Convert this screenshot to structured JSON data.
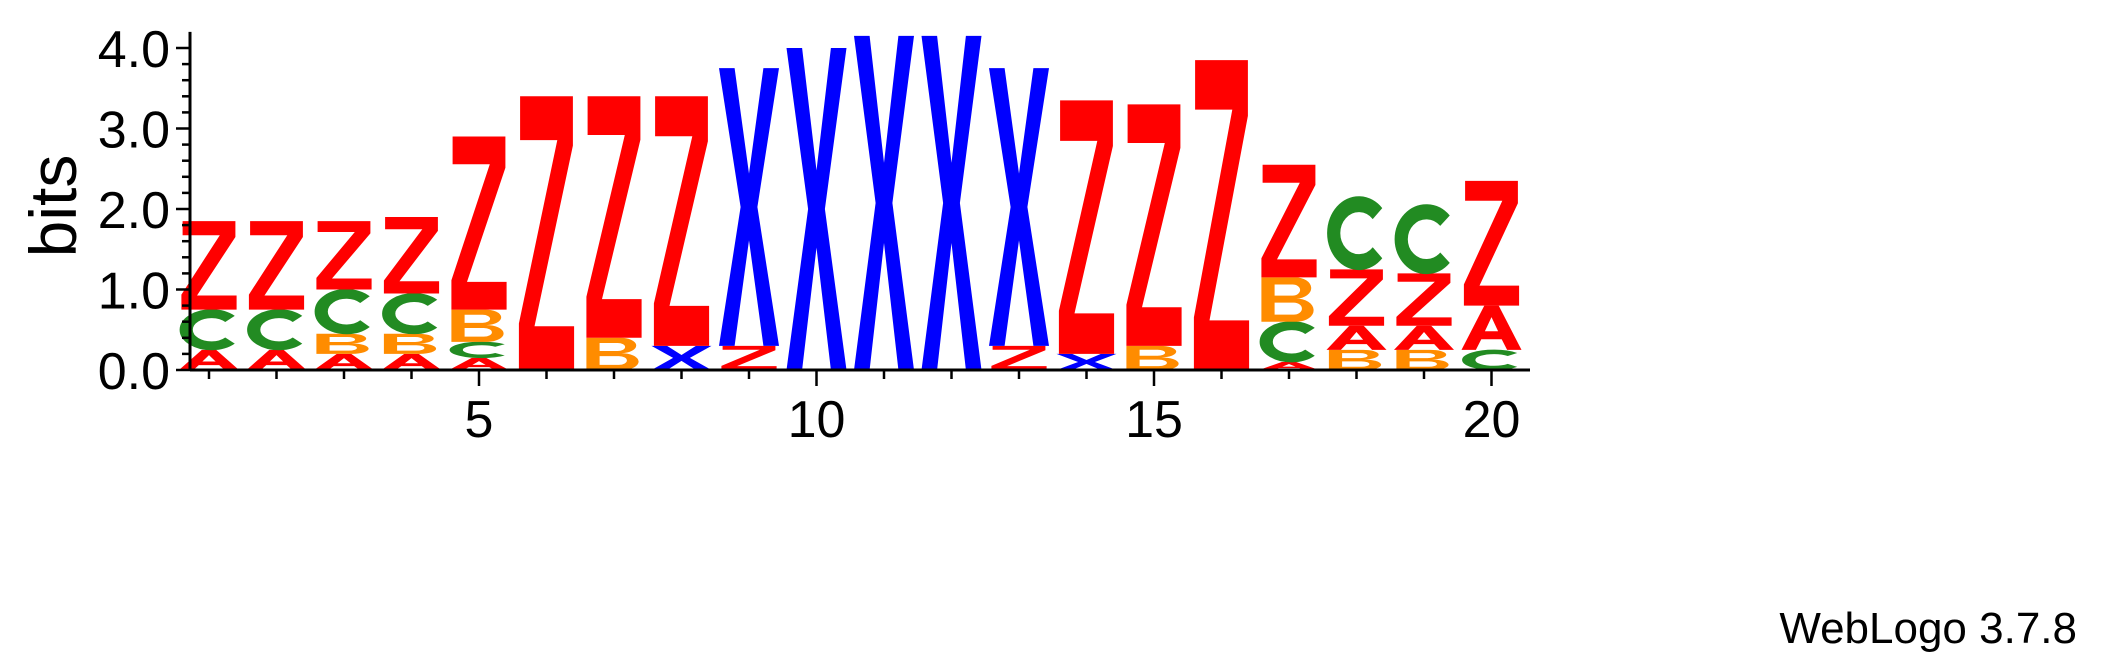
{
  "chart_data": {
    "type": "sequence-logo",
    "ylabel": "bits",
    "ylim": [
      0,
      4.0
    ],
    "y_ticks": [
      "0.0",
      "1.0",
      "2.0",
      "3.0",
      "4.0"
    ],
    "x_ticks": [
      "5",
      "10",
      "15",
      "20"
    ],
    "positions": [
      {
        "pos": 1,
        "stack": [
          [
            "A",
            0.25
          ],
          [
            "C",
            0.5
          ],
          [
            "Z",
            1.1
          ]
        ]
      },
      {
        "pos": 2,
        "stack": [
          [
            "A",
            0.25
          ],
          [
            "C",
            0.5
          ],
          [
            "Z",
            1.1
          ]
        ]
      },
      {
        "pos": 3,
        "stack": [
          [
            "A",
            0.2
          ],
          [
            "B",
            0.25
          ],
          [
            "C",
            0.55
          ],
          [
            "Z",
            0.85
          ]
        ]
      },
      {
        "pos": 4,
        "stack": [
          [
            "A",
            0.2
          ],
          [
            "B",
            0.25
          ],
          [
            "C",
            0.5
          ],
          [
            "Z",
            0.95
          ]
        ]
      },
      {
        "pos": 5,
        "stack": [
          [
            "A",
            0.15
          ],
          [
            "C",
            0.2
          ],
          [
            "B",
            0.4
          ],
          [
            "Z",
            2.15
          ]
        ]
      },
      {
        "pos": 6,
        "stack": [
          [
            "Z",
            3.4
          ]
        ]
      },
      {
        "pos": 7,
        "stack": [
          [
            "B",
            0.4
          ],
          [
            "Z",
            3.0
          ]
        ]
      },
      {
        "pos": 8,
        "stack": [
          [
            "X",
            0.3
          ],
          [
            "Z",
            3.1
          ]
        ]
      },
      {
        "pos": 9,
        "stack": [
          [
            "Z",
            0.3
          ],
          [
            "X",
            3.45
          ]
        ]
      },
      {
        "pos": 10,
        "stack": [
          [
            "X",
            4.0
          ]
        ]
      },
      {
        "pos": 11,
        "stack": [
          [
            "X",
            4.15
          ]
        ]
      },
      {
        "pos": 12,
        "stack": [
          [
            "X",
            4.15
          ]
        ]
      },
      {
        "pos": 13,
        "stack": [
          [
            "Z",
            0.3
          ],
          [
            "X",
            3.45
          ]
        ]
      },
      {
        "pos": 14,
        "stack": [
          [
            "X",
            0.2
          ],
          [
            "Z",
            3.15
          ]
        ]
      },
      {
        "pos": 15,
        "stack": [
          [
            "B",
            0.3
          ],
          [
            "Z",
            3.0
          ]
        ]
      },
      {
        "pos": 16,
        "stack": [
          [
            "Z",
            3.85
          ]
        ]
      },
      {
        "pos": 17,
        "stack": [
          [
            "A",
            0.1
          ],
          [
            "C",
            0.5
          ],
          [
            "B",
            0.55
          ],
          [
            "Z",
            1.4
          ]
        ]
      },
      {
        "pos": 18,
        "stack": [
          [
            "B",
            0.25
          ],
          [
            "A",
            0.3
          ],
          [
            "Z",
            0.7
          ],
          [
            "C",
            0.9
          ]
        ]
      },
      {
        "pos": 19,
        "stack": [
          [
            "B",
            0.25
          ],
          [
            "A",
            0.3
          ],
          [
            "Z",
            0.65
          ],
          [
            "C",
            0.85
          ]
        ]
      },
      {
        "pos": 20,
        "stack": [
          [
            "C",
            0.25
          ],
          [
            "A",
            0.55
          ],
          [
            "Z",
            1.55
          ]
        ]
      }
    ]
  },
  "colors": {
    "A": "#ff0000",
    "B": "#ff8c00",
    "C": "#228b22",
    "X": "#0000ff",
    "Z": "#ff0000"
  },
  "credit": "WebLogo 3.7.8"
}
